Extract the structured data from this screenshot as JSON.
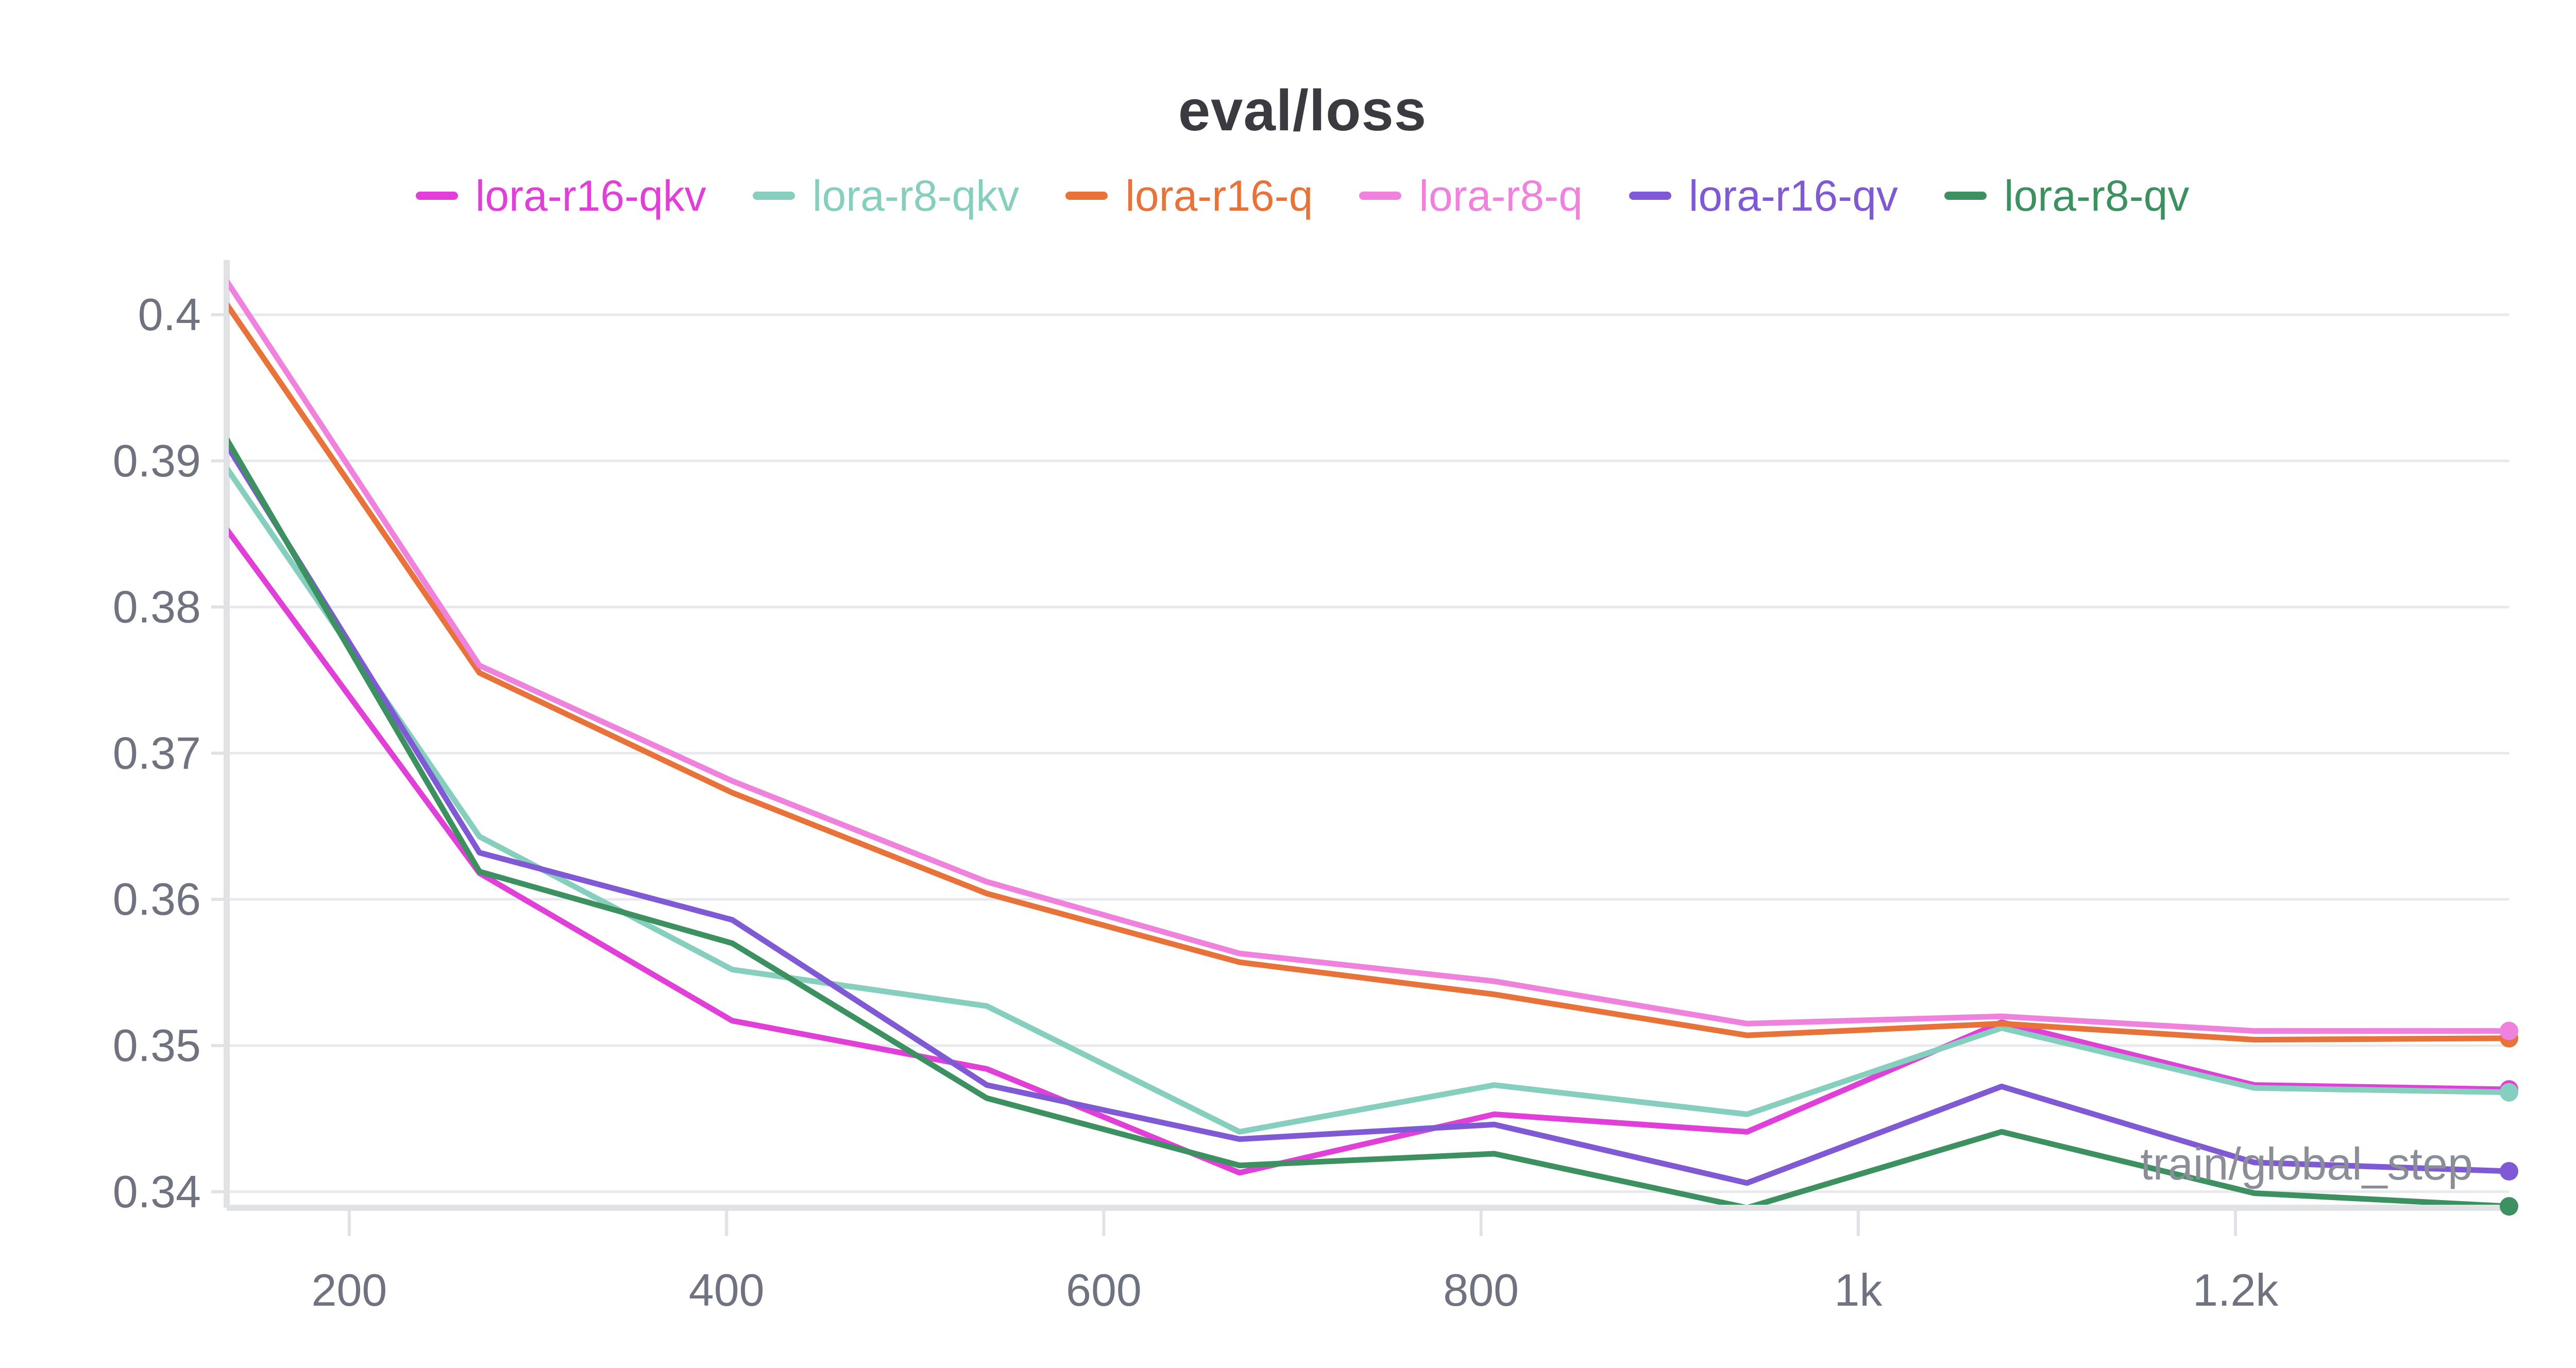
{
  "chart_data": {
    "type": "line",
    "title": "eval/loss",
    "xlabel": "train/global_step",
    "ylabel": "",
    "xlim": [
      135,
      1345
    ],
    "ylim": [
      0.3389,
      0.4025
    ],
    "x_ticks": [
      {
        "value": 200,
        "label": "200"
      },
      {
        "value": 400,
        "label": "400"
      },
      {
        "value": 600,
        "label": "600"
      },
      {
        "value": 800,
        "label": "800"
      },
      {
        "value": 1000,
        "label": "1k"
      },
      {
        "value": 1200,
        "label": "1.2k"
      }
    ],
    "y_ticks": [
      {
        "value": 0.34,
        "label": "0.34"
      },
      {
        "value": 0.35,
        "label": "0.35"
      },
      {
        "value": 0.36,
        "label": "0.36"
      },
      {
        "value": 0.37,
        "label": "0.37"
      },
      {
        "value": 0.38,
        "label": "0.38"
      },
      {
        "value": 0.39,
        "label": "0.39"
      },
      {
        "value": 0.4,
        "label": "0.4"
      }
    ],
    "grid": true,
    "legend_position": "top-center",
    "x": [
      134,
      269,
      403,
      538,
      672,
      807,
      941,
      1076,
      1210,
      1345
    ],
    "series": [
      {
        "name": "lora-r16-qkv",
        "color": "#e040d8",
        "values": [
          0.3855,
          0.3618,
          0.3517,
          0.3484,
          0.3413,
          0.3453,
          0.3441,
          0.3516,
          0.3473,
          0.347
        ]
      },
      {
        "name": "lora-r8-qkv",
        "color": "#86cfbf",
        "values": [
          0.3897,
          0.3643,
          0.3552,
          0.3527,
          0.3441,
          0.3473,
          0.3453,
          0.3512,
          0.3471,
          0.3468
        ]
      },
      {
        "name": "lora-r16-q",
        "color": "#e8733a",
        "values": [
          0.4009,
          0.3755,
          0.3673,
          0.3604,
          0.3557,
          0.3535,
          0.3507,
          0.3515,
          0.3504,
          0.3505
        ]
      },
      {
        "name": "lora-r8-q",
        "color": "#ef82dd",
        "values": [
          0.4025,
          0.376,
          0.3681,
          0.3612,
          0.3563,
          0.3544,
          0.3515,
          0.352,
          0.351,
          0.351
        ]
      },
      {
        "name": "lora-r16-qv",
        "color": "#805ad5",
        "values": [
          0.3913,
          0.3632,
          0.3586,
          0.3473,
          0.3436,
          0.3446,
          0.3406,
          0.3472,
          0.342,
          0.3414
        ]
      },
      {
        "name": "lora-r8-qv",
        "color": "#3d9160",
        "values": [
          0.3917,
          0.3619,
          0.357,
          0.3464,
          0.3418,
          0.3426,
          0.3389,
          0.3441,
          0.3399,
          0.339
        ]
      }
    ]
  }
}
